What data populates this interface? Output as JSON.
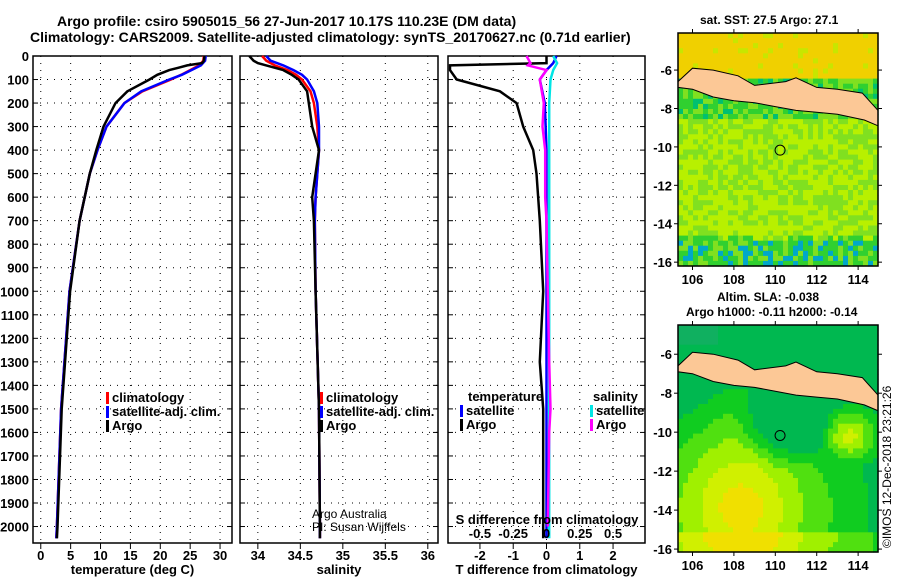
{
  "title": {
    "line1": "Argo profile: csiro 5905015_56 27-Jun-2017 10.17S 110.23E (DM data)",
    "line2": "Climatology: CARS2009. Satellite-adjusted climatology: synTS_20170627.nc (0.71d earlier)"
  },
  "colors": {
    "climatology": "#ff0000",
    "satellite": "#0000ff",
    "argo": "#000000",
    "sal_satellite": "#00e5e5",
    "sal_argo": "#ff00ff",
    "land": "#fcc896"
  },
  "chart_data": [
    {
      "type": "line",
      "xlabel": "temperature (deg C)",
      "ylabel": "",
      "xlim": [
        -1.3,
        32
      ],
      "ylim": [
        2070,
        0
      ],
      "xticks": [
        0,
        5,
        10,
        15,
        20,
        25,
        30
      ],
      "yticks": [
        0,
        100,
        200,
        300,
        400,
        500,
        600,
        700,
        800,
        900,
        1000,
        1100,
        1200,
        1300,
        1400,
        1500,
        1600,
        1700,
        1800,
        1900,
        2000
      ],
      "legend": [
        "climatology",
        "satellite-adj. clim.",
        "Argo"
      ],
      "series": [
        {
          "name": "climatology",
          "depth": [
            0,
            20,
            40,
            60,
            80,
            100,
            150,
            200,
            300,
            400,
            500,
            700,
            1000,
            1500,
            2000,
            2050
          ],
          "values": [
            27.3,
            27.2,
            26.5,
            25,
            23.5,
            21.8,
            17,
            14,
            11,
            9.5,
            8.2,
            6.5,
            4.8,
            3.4,
            2.7,
            2.6
          ]
        },
        {
          "name": "satellite-adj. clim.",
          "depth": [
            0,
            20,
            40,
            60,
            80,
            100,
            150,
            200,
            300,
            400,
            500,
            700,
            1000,
            1500,
            2000,
            2050
          ],
          "values": [
            27.6,
            27.5,
            26.8,
            25.2,
            23.6,
            21.5,
            16.8,
            14,
            11,
            9.5,
            8.2,
            6.5,
            4.8,
            3.4,
            2.7,
            2.6
          ]
        },
        {
          "name": "Argo",
          "depth": [
            0,
            20,
            30,
            40,
            50,
            60,
            80,
            100,
            150,
            200,
            300,
            400,
            500,
            700,
            1000,
            1500,
            2000,
            2050
          ],
          "values": [
            27.4,
            27.3,
            27,
            24.5,
            23,
            21.5,
            19.5,
            18.2,
            14.5,
            12.5,
            10.5,
            9.3,
            8.2,
            6.5,
            4.9,
            3.5,
            2.8,
            2.7
          ]
        }
      ]
    },
    {
      "type": "line",
      "xlabel": "salinity",
      "ylabel": "",
      "xlim": [
        33.79,
        36.12
      ],
      "ylim": [
        2070,
        0
      ],
      "xticks": [
        34,
        34.5,
        35,
        35.5,
        36
      ],
      "legend": [
        "climatology",
        "satellite-adj. clim.",
        "Argo"
      ],
      "annotation": [
        "Argo Australia",
        "PI: Susan Wijffels"
      ],
      "series": [
        {
          "name": "climatology",
          "depth": [
            0,
            20,
            40,
            60,
            80,
            100,
            150,
            200,
            300,
            400,
            500,
            600,
            700,
            1000,
            1500,
            2000,
            2050
          ],
          "values": [
            34.05,
            34.1,
            34.2,
            34.35,
            34.45,
            34.52,
            34.62,
            34.66,
            34.7,
            34.72,
            34.7,
            34.68,
            34.67,
            34.68,
            34.72,
            34.73,
            34.73
          ]
        },
        {
          "name": "satellite-adj. clim.",
          "depth": [
            0,
            20,
            40,
            60,
            80,
            100,
            150,
            200,
            300,
            400,
            500,
            600,
            700,
            1000,
            1500,
            2000,
            2050
          ],
          "values": [
            34.1,
            34.15,
            34.3,
            34.42,
            34.52,
            34.58,
            34.66,
            34.7,
            34.72,
            34.72,
            34.7,
            34.68,
            34.67,
            34.68,
            34.72,
            34.73,
            34.73
          ]
        },
        {
          "name": "Argo",
          "depth": [
            0,
            20,
            30,
            40,
            60,
            80,
            100,
            150,
            200,
            300,
            400,
            500,
            600,
            700,
            1000,
            1500,
            2000,
            2050
          ],
          "values": [
            33.9,
            33.95,
            34.0,
            34.1,
            34.3,
            34.4,
            34.48,
            34.58,
            34.6,
            34.64,
            34.72,
            34.68,
            34.64,
            34.66,
            34.68,
            34.72,
            34.73,
            34.73
          ]
        }
      ]
    },
    {
      "type": "line",
      "xlabel": "T difference from climatology",
      "x2label": "S difference from climatology",
      "xlim": [
        -2.96,
        2.96
      ],
      "x2lim": [
        -0.74,
        0.74
      ],
      "ylim": [
        2070,
        0
      ],
      "xticks": [
        -2,
        -1,
        0,
        1,
        2
      ],
      "x2ticks": [
        "-0.5",
        "-0.25",
        "0",
        "0.25",
        "0.5"
      ],
      "legend": {
        "temperature": "temperature",
        "salinity": "salinity",
        "items": [
          "satellite",
          "Argo",
          "satellite",
          "Argo"
        ]
      },
      "series": [
        {
          "name": "temperature satellite",
          "depth": [
            0,
            30,
            60,
            100,
            200,
            400,
            1000,
            2000,
            2050
          ],
          "values": [
            0.3,
            0.2,
            0,
            -0.2,
            -0.05,
            0,
            0,
            0,
            0
          ]
        },
        {
          "name": "temperature Argo",
          "depth": [
            0,
            30,
            40,
            60,
            100,
            150,
            200,
            300,
            400,
            500,
            700,
            1000,
            1300,
            1500,
            2000,
            2050
          ],
          "values": [
            0,
            0,
            -2.9,
            -2.9,
            -2.7,
            -1.4,
            -0.9,
            -0.7,
            -0.4,
            -0.3,
            -0.2,
            -0.1,
            -0.2,
            -0.1,
            -0.1,
            -0.1
          ]
        },
        {
          "name": "salinity satellite",
          "depth": [
            0,
            30,
            60,
            100,
            200,
            400,
            1000,
            2000,
            2050
          ],
          "values": [
            0.05,
            0.08,
            0.05,
            0.03,
            0.02,
            0.02,
            0.02,
            0.02,
            0.02
          ]
        },
        {
          "name": "salinity Argo",
          "depth": [
            0,
            30,
            40,
            60,
            100,
            200,
            300,
            400,
            600,
            700,
            1000,
            1300,
            1500,
            1600,
            2000
          ],
          "values": [
            -0.15,
            -0.12,
            -0.14,
            0,
            -0.05,
            -0.02,
            -0.03,
            -0.01,
            -0.01,
            0,
            0.01,
            0.02,
            0.03,
            0.02,
            0.01
          ]
        }
      ]
    }
  ],
  "maps": [
    {
      "title": "sat. SST: 27.5 Argo: 27.1",
      "lat_ticks": [
        "-6",
        "-8",
        "-10",
        "-12",
        "-14",
        "-16"
      ],
      "lon_ticks": [
        "106",
        "108",
        "110",
        "112",
        "114"
      ]
    },
    {
      "title1": "Altim. SLA: -0.038",
      "title2": "Argo h1000: -0.11 h2000: -0.14",
      "lat_ticks": [
        "-6",
        "-8",
        "-10",
        "-12",
        "-14",
        "-16"
      ],
      "lon_ticks": [
        "106",
        "108",
        "110",
        "112",
        "114"
      ]
    }
  ],
  "stamp": "©IMOS 12-Dec-2018 23:21:26"
}
